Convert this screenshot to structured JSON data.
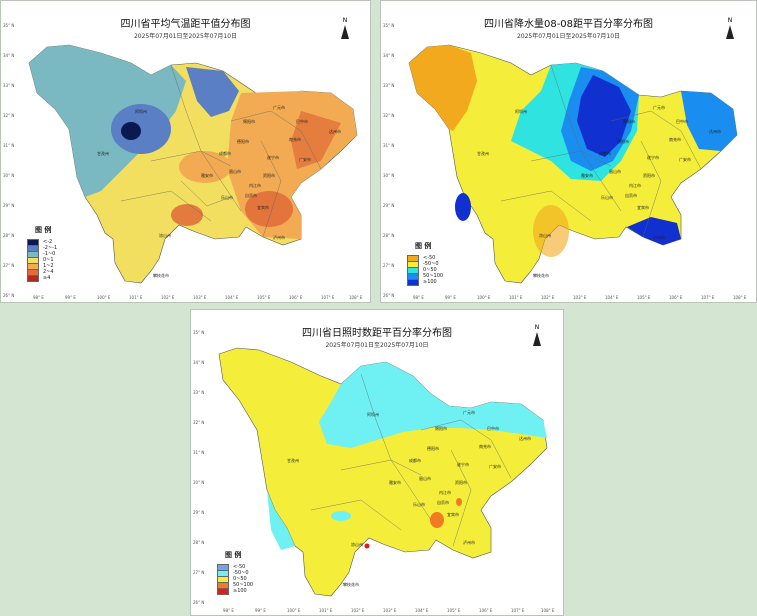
{
  "maps": [
    {
      "title": "四川省平均气温距平值分布图",
      "subtitle": "2025年07月01日至2025年07月10日",
      "north": "N",
      "legend_title": "图 例",
      "legend": [
        {
          "label": "<-2",
          "color": "#0b1950"
        },
        {
          "label": "-2~-1",
          "color": "#5a7fc4"
        },
        {
          "label": "-1~0",
          "color": "#7ab8c2"
        },
        {
          "label": "0~1",
          "color": "#f2df60"
        },
        {
          "label": "1~2",
          "color": "#f2ab52"
        },
        {
          "label": "2~4",
          "color": "#e06a38"
        },
        {
          "label": "≥4",
          "color": "#b02a1e"
        }
      ]
    },
    {
      "title": "四川省降水量08-08距平百分率分布图",
      "subtitle": "2025年07月01日至2025年07月10日",
      "north": "N",
      "legend_title": "图 例",
      "legend": [
        {
          "label": "<-50",
          "color": "#f2a91e"
        },
        {
          "label": "-50~0",
          "color": "#f4ee3a"
        },
        {
          "label": "0~50",
          "color": "#2fe3e0"
        },
        {
          "label": "50~100",
          "color": "#1a8ef0"
        },
        {
          "label": "≥100",
          "color": "#1030d0"
        }
      ]
    },
    {
      "title": "四川省日照时数距平百分率分布图",
      "subtitle": "2025年07月01日至2025年07月10日",
      "north": "N",
      "legend_title": "图 例",
      "legend": [
        {
          "label": "<-50",
          "color": "#6fa6e8"
        },
        {
          "label": "-50~0",
          "color": "#6ff0f2"
        },
        {
          "label": "0~50",
          "color": "#f4ee3a"
        },
        {
          "label": "50~100",
          "color": "#f27a22"
        },
        {
          "label": "≥100",
          "color": "#e81a12"
        }
      ]
    }
  ],
  "lat_ticks": [
    "35° N",
    "34° N",
    "33° N",
    "32° N",
    "31° N",
    "30° N",
    "29° N",
    "28° N",
    "27° N",
    "26° N"
  ],
  "lon_ticks": [
    "98° E",
    "99° E",
    "100° E",
    "101° E",
    "102° E",
    "103° E",
    "104° E",
    "105° E",
    "106° E",
    "107° E",
    "108° E"
  ],
  "cities": [
    "阿坝州",
    "甘孜州",
    "广元市",
    "绵阳市",
    "巴中市",
    "南充市",
    "达州市",
    "德阳市",
    "成都市",
    "遂宁市",
    "广安市",
    "雅安市",
    "眉山市",
    "资阳市",
    "内江市",
    "乐山市",
    "自贡市",
    "宜宾市",
    "泸州市",
    "凉山州",
    "攀枝花市"
  ]
}
